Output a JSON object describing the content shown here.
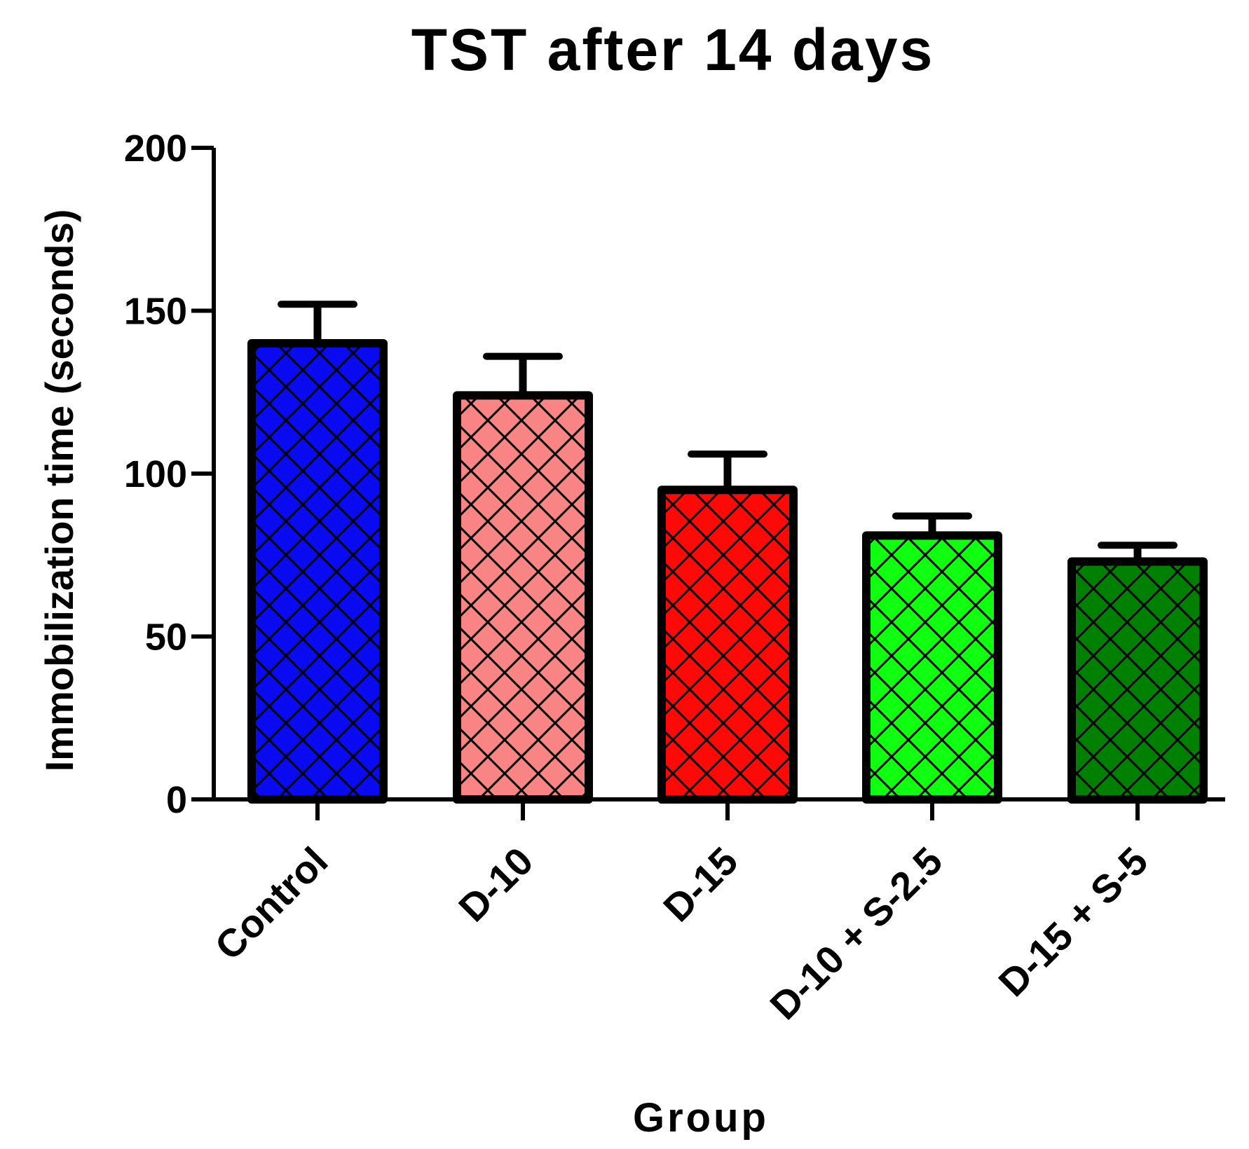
{
  "chart_data": {
    "type": "bar",
    "title": "TST after 14 days",
    "xlabel": "Group",
    "ylabel": "Immobilization time (seconds)",
    "ylim": [
      0,
      200
    ],
    "yticks": [
      0,
      50,
      100,
      150,
      200
    ],
    "categories": [
      "Control",
      "D-10",
      "D-15",
      "D-10 + S-2.5",
      "D-15 + S-5"
    ],
    "values": [
      140,
      124,
      95,
      81,
      73
    ],
    "errors": [
      12,
      12,
      11,
      6,
      5
    ],
    "colors": [
      "#0a0af0",
      "#f88484",
      "#ff0808",
      "#10ff10",
      "#008000"
    ],
    "pattern": "crosshatch"
  }
}
